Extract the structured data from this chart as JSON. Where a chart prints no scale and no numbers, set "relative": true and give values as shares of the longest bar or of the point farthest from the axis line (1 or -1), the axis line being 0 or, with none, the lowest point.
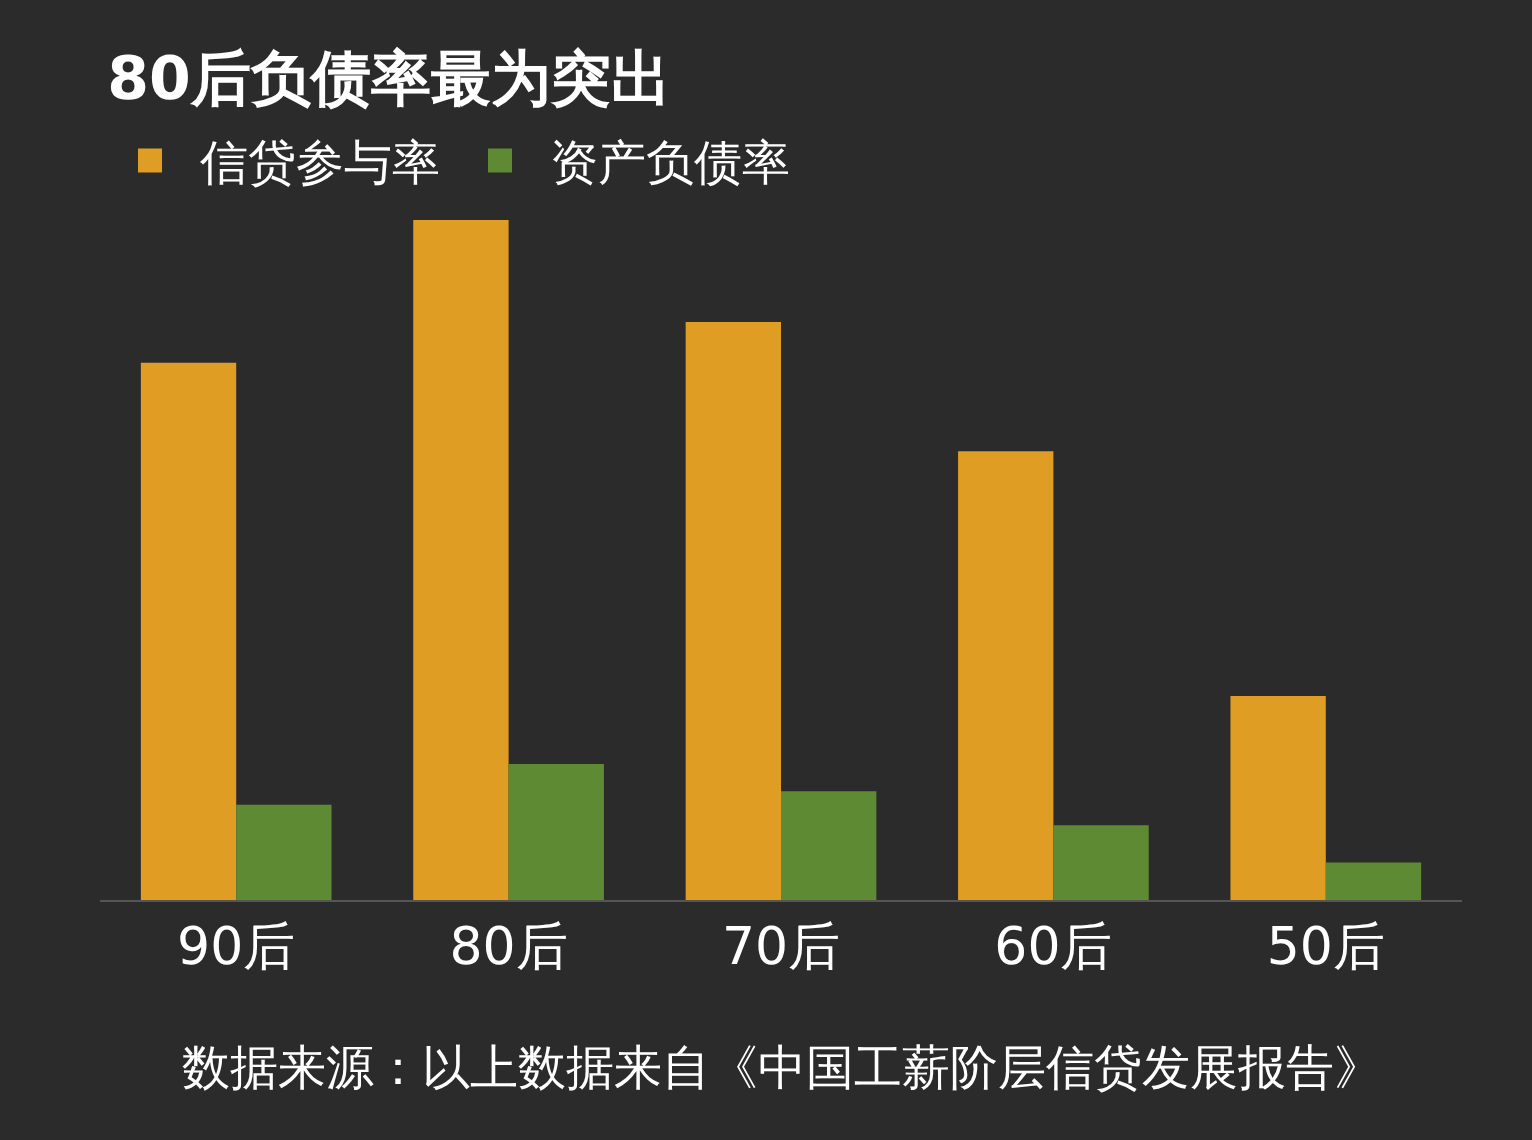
{
  "chart_data": {
    "type": "bar",
    "title": "80后负债率最为突出",
    "relative": true,
    "legend": "top left",
    "grid": false,
    "categories": [
      "90后",
      "80后",
      "70后",
      "60后",
      "50后"
    ],
    "series": [
      {
        "name": "信贷参与率",
        "color": "#e09d24",
        "values": [
          0.79,
          1,
          0.85,
          0.66,
          0.3
        ]
      },
      {
        "name": "资产负债率",
        "color": "#5e8a33",
        "values": [
          0.14,
          0.2,
          0.16,
          0.11,
          0.055
        ]
      }
    ],
    "annotations": [
      "数据来源：以上数据来自《中国工薪阶层信贷发展报告》"
    ]
  }
}
